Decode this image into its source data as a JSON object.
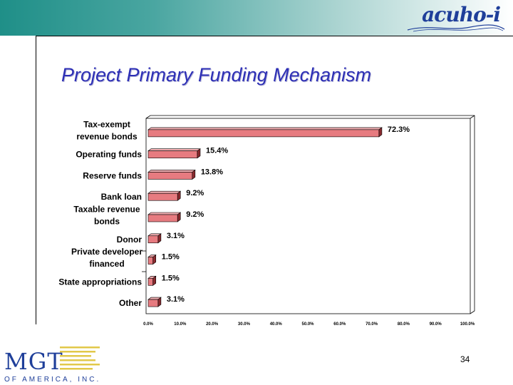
{
  "header": {
    "logo_text": "acuho-i",
    "logo_icon": "swoosh-icon"
  },
  "slide": {
    "title": "Project Primary Funding Mechanism",
    "page_number": "34"
  },
  "footer_logo": {
    "name": "MGT",
    "subtitle": "OF AMERICA, INC."
  },
  "colors": {
    "bar_front": "#e77b80",
    "bar_top": "#f1adb0",
    "bar_side": "#8a2a2f",
    "title": "#2d2fb5",
    "brand_blue": "#1f3f9a",
    "brand_yellow": "#e2c84a"
  },
  "chart_data": {
    "type": "bar",
    "orientation": "horizontal",
    "title": "",
    "xlabel": "",
    "ylabel": "",
    "xlim": [
      0,
      100
    ],
    "grid": false,
    "legend": "none",
    "x_ticks": [
      "0.0%",
      "10.0%",
      "20.0%",
      "30.0%",
      "40.0%",
      "50.0%",
      "60.0%",
      "70.0%",
      "80.0%",
      "90.0%",
      "100.0%"
    ],
    "categories": [
      [
        "Tax-exempt",
        "revenue bonds"
      ],
      [
        "Operating funds"
      ],
      [
        "Reserve funds"
      ],
      [
        "Bank loan"
      ],
      [
        "Taxable revenue",
        "bonds"
      ],
      [
        "Donor"
      ],
      [
        "Private developer",
        "financed"
      ],
      [
        "State appropriations"
      ],
      [
        "Other"
      ]
    ],
    "values": [
      72.3,
      15.4,
      13.8,
      9.2,
      9.2,
      3.1,
      1.5,
      1.5,
      3.1
    ],
    "value_labels": [
      "72.3%",
      "15.4%",
      "13.8%",
      "9.2%",
      "9.2%",
      "3.1%",
      "1.5%",
      "1.5%",
      "3.1%"
    ]
  }
}
